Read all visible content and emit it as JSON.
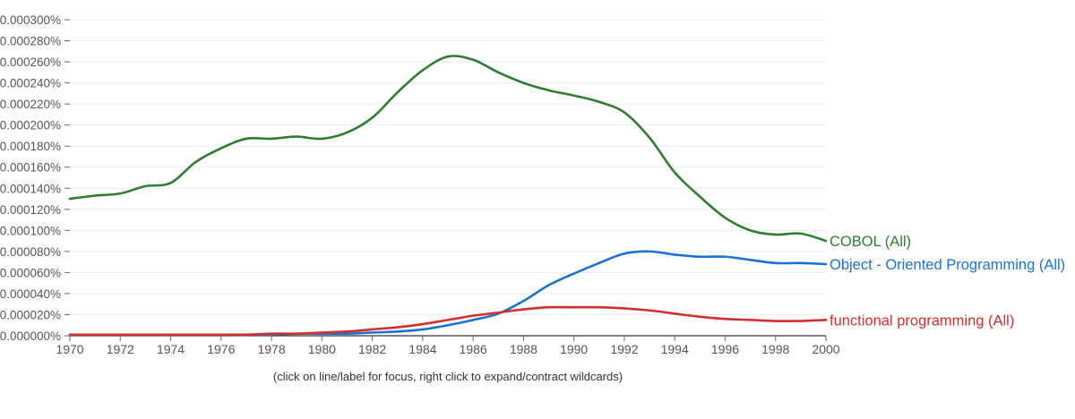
{
  "hint_text": "(click on line/label for focus, right click to expand/contract wildcards)",
  "chart_data": {
    "type": "line",
    "title": "",
    "xlabel": "",
    "ylabel": "",
    "x": [
      1970,
      1971,
      1972,
      1973,
      1974,
      1975,
      1976,
      1977,
      1978,
      1979,
      1980,
      1981,
      1982,
      1983,
      1984,
      1985,
      1986,
      1987,
      1988,
      1989,
      1990,
      1991,
      1992,
      1993,
      1994,
      1995,
      1996,
      1997,
      1998,
      1999,
      2000
    ],
    "xlim": [
      1970,
      2000
    ],
    "ylim": [
      0,
      0.0003
    ],
    "x_ticks": [
      1970,
      1972,
      1974,
      1976,
      1978,
      1980,
      1982,
      1984,
      1986,
      1988,
      1990,
      1992,
      1994,
      1996,
      1998,
      2000
    ],
    "x_tick_labels": [
      "1970",
      "1972",
      "1974",
      "1976",
      "1978",
      "1980",
      "1982",
      "1984",
      "1986",
      "1988",
      "1990",
      "1992",
      "1994",
      "1996",
      "1998",
      "2000"
    ],
    "y_ticks": [
      0,
      2e-05,
      4e-05,
      6e-05,
      8e-05,
      0.0001,
      0.00012,
      0.00014,
      0.00016,
      0.00018,
      0.0002,
      0.00022,
      0.00024,
      0.00026,
      0.00028,
      0.0003
    ],
    "y_tick_labels": [
      "0.000000%",
      "0.000020%",
      "0.000040%",
      "0.000060%",
      "0.000080%",
      "0.000100%",
      "0.000120%",
      "0.000140%",
      "0.000160%",
      "0.000180%",
      "0.000200%",
      "0.000220%",
      "0.000240%",
      "0.000260%",
      "0.000280%",
      "0.000300%"
    ],
    "grid": true,
    "series": [
      {
        "name": "COBOL (All)",
        "color": "#2e7d32",
        "values": [
          0.00013,
          0.000133,
          0.000135,
          0.000142,
          0.000145,
          0.000165,
          0.000178,
          0.000187,
          0.000187,
          0.000189,
          0.000187,
          0.000193,
          0.000207,
          0.000231,
          0.000252,
          0.000265,
          0.000262,
          0.00025,
          0.00024,
          0.000233,
          0.000228,
          0.000222,
          0.000212,
          0.000188,
          0.000155,
          0.000132,
          0.000112,
          0.0001,
          9.6e-05,
          9.7e-05,
          9e-05
        ]
      },
      {
        "name": "Object - Oriented Programming (All)",
        "color": "#1a73d1",
        "values": [
          1e-06,
          1e-06,
          1e-06,
          1e-06,
          1e-06,
          1e-06,
          1e-06,
          1e-06,
          1e-06,
          2e-06,
          2e-06,
          2e-06,
          3e-06,
          4e-06,
          6e-06,
          1e-05,
          1.5e-05,
          2.1e-05,
          3.3e-05,
          4.8e-05,
          5.9e-05,
          6.9e-05,
          7.8e-05,
          8e-05,
          7.7e-05,
          7.5e-05,
          7.5e-05,
          7.2e-05,
          6.9e-05,
          6.9e-05,
          6.8e-05
        ]
      },
      {
        "name": "functional programming (All)",
        "color": "#d32f2f",
        "values": [
          1e-06,
          1e-06,
          1e-06,
          1e-06,
          1e-06,
          1e-06,
          1e-06,
          1e-06,
          2e-06,
          2e-06,
          3e-06,
          4e-06,
          6e-06,
          8e-06,
          1.1e-05,
          1.5e-05,
          1.9e-05,
          2.2e-05,
          2.5e-05,
          2.7e-05,
          2.7e-05,
          2.7e-05,
          2.6e-05,
          2.4e-05,
          2.1e-05,
          1.8e-05,
          1.6e-05,
          1.5e-05,
          1.4e-05,
          1.4e-05,
          1.5e-05
        ]
      }
    ]
  }
}
